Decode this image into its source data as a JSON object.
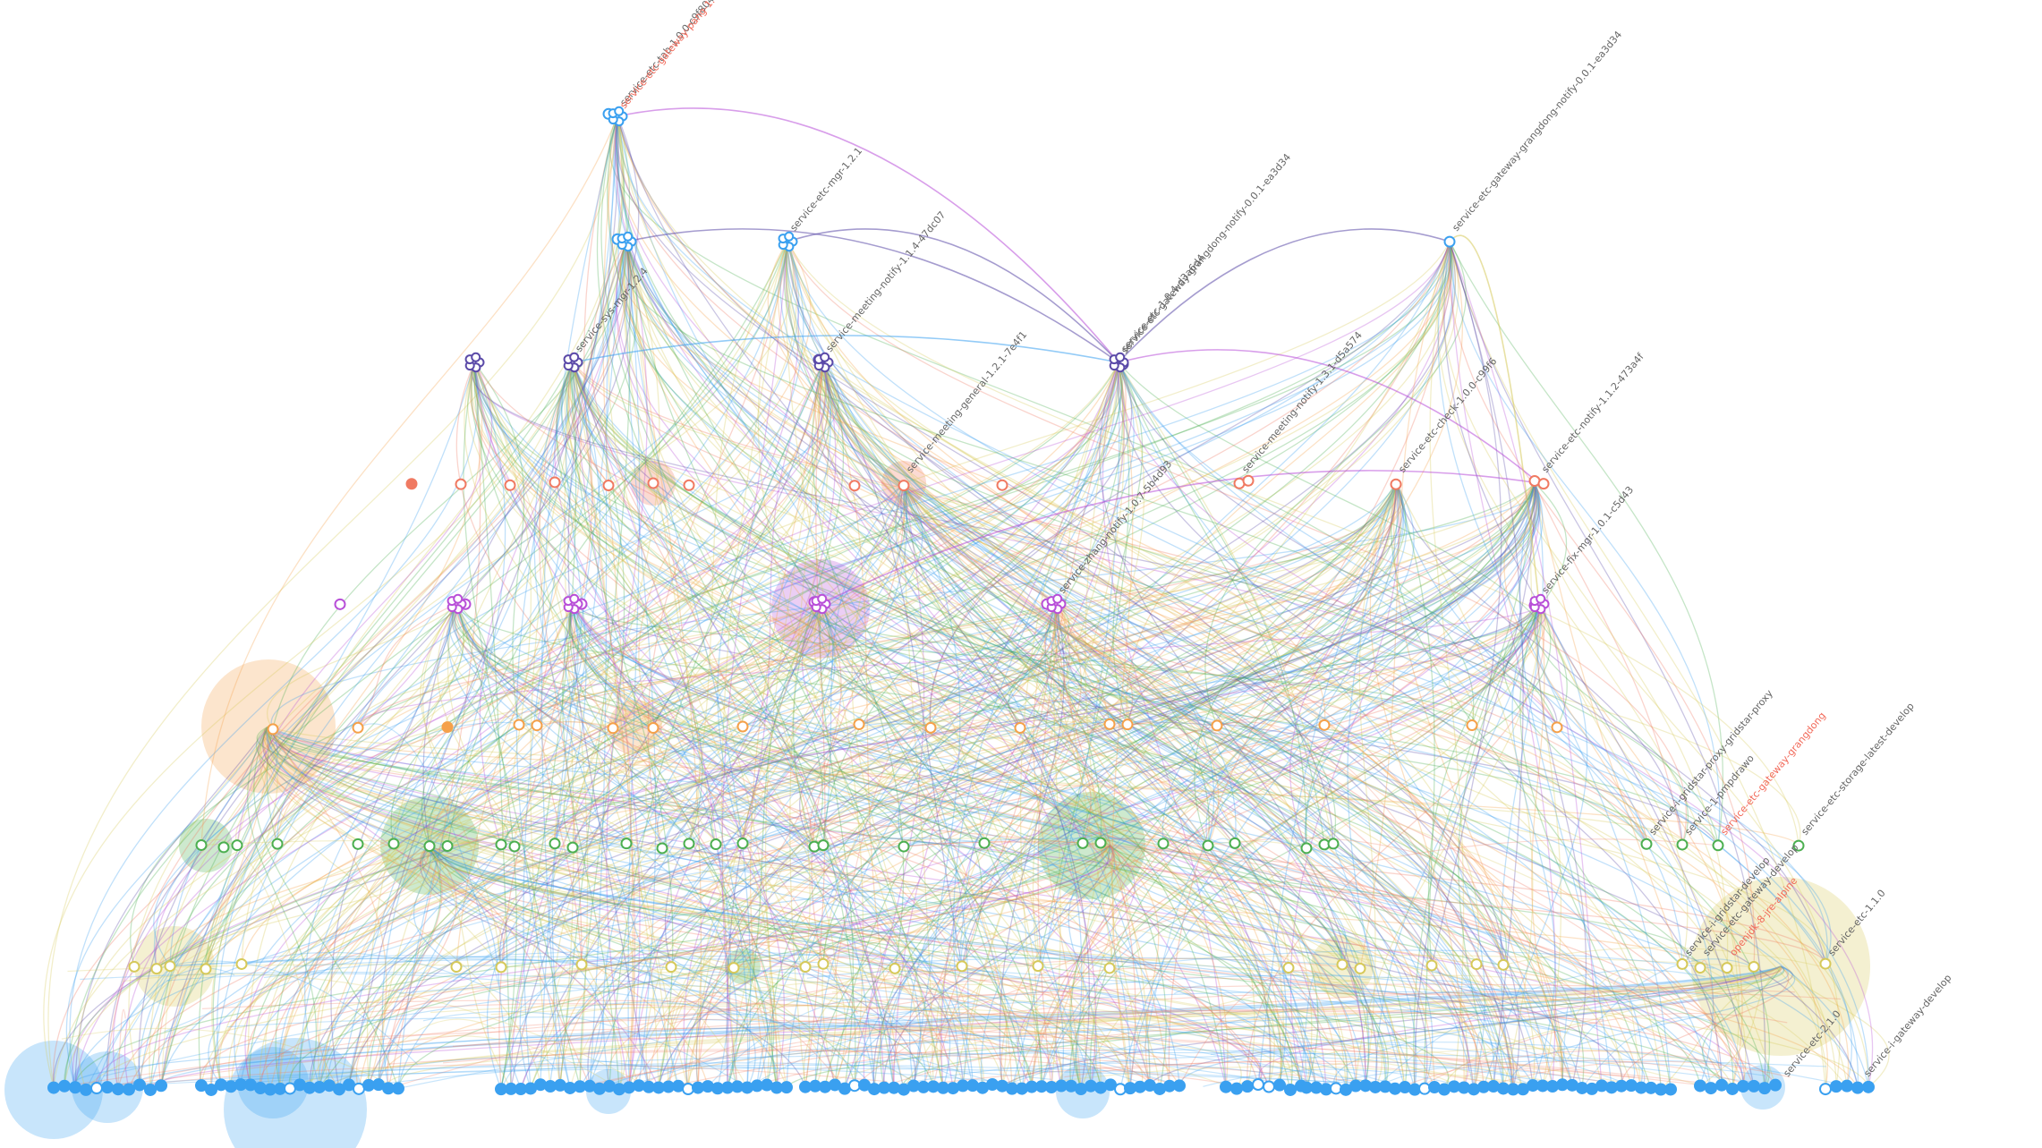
{
  "graph": {
    "colors": {
      "blue": "#3aa0f0",
      "green": "#4caf50",
      "olive": "#d6c95a",
      "orange": "#f5a14a",
      "red": "#f07a62",
      "purple": "#b84fd8",
      "indigo": "#5b4aa8",
      "label_gray": "#666666",
      "label_red": "#f26a5a"
    },
    "tiers": [
      {
        "name": "tier-1",
        "color": "blue",
        "filled": true
      },
      {
        "name": "tier-2",
        "color": "olive",
        "filled": false
      },
      {
        "name": "tier-3",
        "color": "green",
        "filled": false
      },
      {
        "name": "tier-4",
        "color": "orange",
        "filled": false
      },
      {
        "name": "tier-5",
        "color": "purple",
        "filled": false
      },
      {
        "name": "tier-6",
        "color": "red",
        "filled": false
      },
      {
        "name": "tier-7",
        "color": "indigo",
        "filled": false
      },
      {
        "name": "tier-8",
        "color": "blue",
        "filled": false
      }
    ],
    "labels": [
      {
        "text": "service-etc-tab-1.0.0-c9f804",
        "color": "label_gray"
      },
      {
        "text": "service-etc-gateway-pang-1.0.0-8e7f",
        "color": "label_red"
      },
      {
        "text": "service-etc-gateway-grangdong-notify-0.0.1-ea3d34",
        "color": "label_gray"
      },
      {
        "text": "service-etc-mgr-1.2.1",
        "color": "label_gray"
      },
      {
        "text": "service-meeting-notify-1.1.4-47dc07",
        "color": "label_gray"
      },
      {
        "text": "service-etc-1.0.4-d3a6d4",
        "color": "label_gray"
      },
      {
        "text": "service-etc-gateway-grangdong-notify-0.0.1-ea3d34",
        "color": "label_gray"
      },
      {
        "text": "service-sys-mgr-1.2.4",
        "color": "label_gray"
      },
      {
        "text": "service-meeting-general-1.2.1-7e4f1",
        "color": "label_gray"
      },
      {
        "text": "service-meeting-notify-1.3.1-d5a574",
        "color": "label_gray"
      },
      {
        "text": "service-etc-check-1.0.0-c99f6",
        "color": "label_gray"
      },
      {
        "text": "service-etc-notify-1.1.2-473a4f",
        "color": "label_gray"
      },
      {
        "text": "service-fix-mgr-1.0.1-c5d43",
        "color": "label_gray"
      },
      {
        "text": "service-zhang-notify-1.0.7-5b4d93",
        "color": "label_gray"
      },
      {
        "text": "service-i-gridstar-proxy-gridstar-proxy",
        "color": "label_gray"
      },
      {
        "text": "service-1-pmpdrawo",
        "color": "label_gray"
      },
      {
        "text": "service-etc-gateway-grangdong",
        "color": "label_red"
      },
      {
        "text": "service-etc-storage-latest-develop",
        "color": "label_gray"
      },
      {
        "text": "service-i-gridstar-develop",
        "color": "label_gray"
      },
      {
        "text": "service-etc-gateway-develop",
        "color": "label_gray"
      },
      {
        "text": "openjdk-8-jre-alpine",
        "color": "label_red"
      },
      {
        "text": "service-etc-1.1.0",
        "color": "label_gray"
      },
      {
        "text": "service-etc-2.1.0",
        "color": "label_gray"
      },
      {
        "text": "service-i-gateway-develop",
        "color": "label_gray"
      }
    ]
  }
}
